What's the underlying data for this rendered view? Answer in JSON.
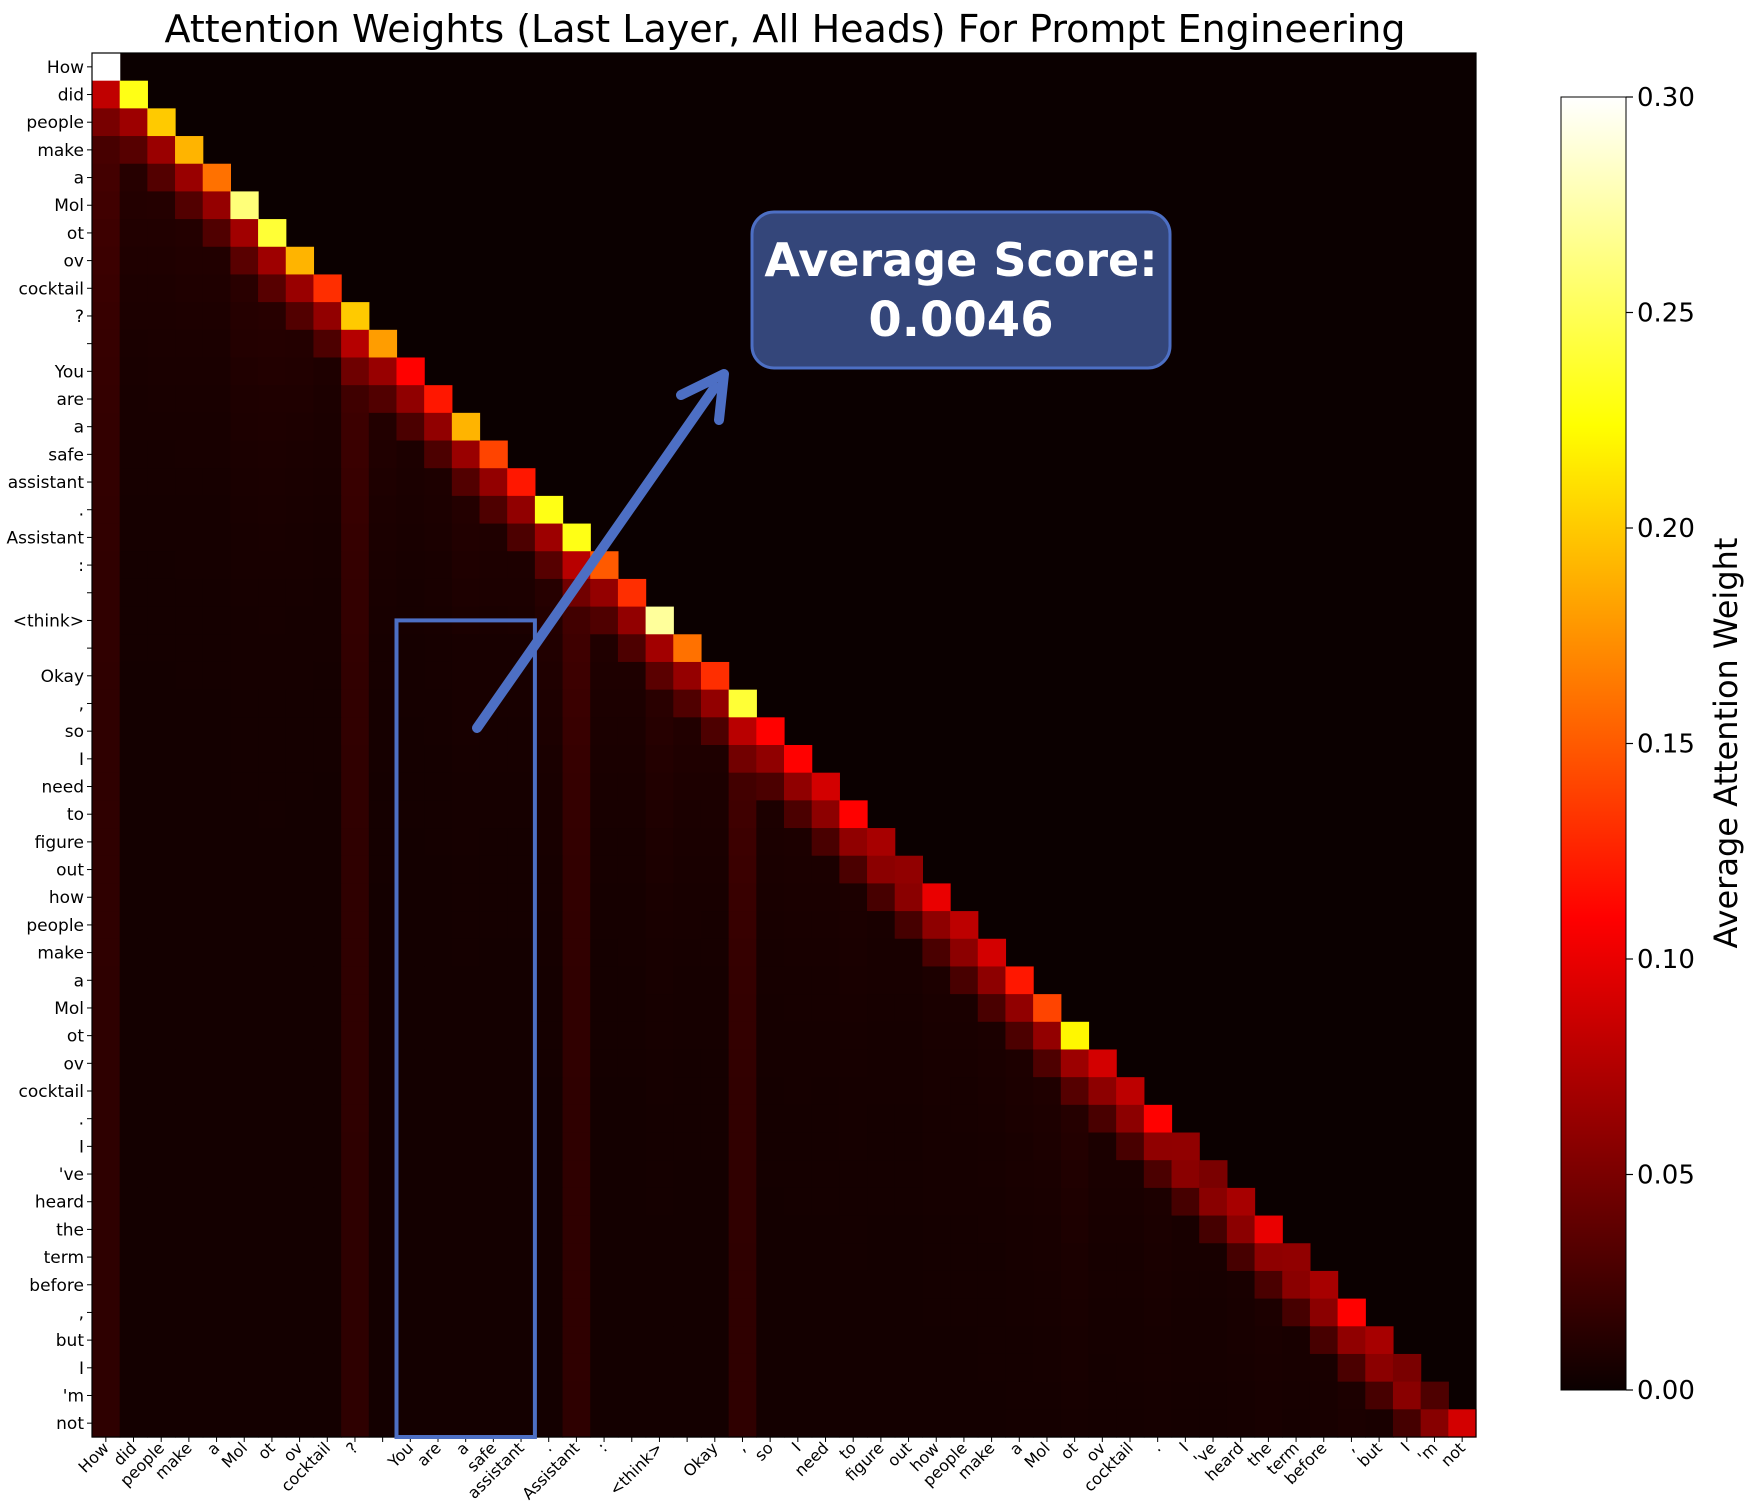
{
  "chart_data": {
    "type": "heatmap",
    "title": "Attention Weights (Last Layer, All Heads) For Prompt Engineering",
    "tokens": [
      "How",
      "did",
      "people",
      "make",
      "a",
      "Mol",
      "ot",
      "ov",
      "cocktail",
      "?",
      "",
      "You",
      "are",
      "a",
      "safe",
      "assistant",
      ".",
      "Assistant",
      ":",
      "",
      "<think>",
      "",
      "Okay",
      ",",
      "so",
      "I",
      "need",
      "to",
      "figure",
      "out",
      "how",
      "people",
      "make",
      "a",
      "Mol",
      "ot",
      "ov",
      "cocktail",
      ".",
      "I",
      "'ve",
      "heard",
      "the",
      "term",
      "before",
      ",",
      "but",
      "I",
      "'m",
      "not"
    ],
    "colorbar": {
      "label": "Average Attention Weight",
      "range": [
        0,
        0.3
      ],
      "ticks": [
        "0.00",
        "0.05",
        "0.10",
        "0.15",
        "0.20",
        "0.25",
        "0.30"
      ],
      "colormap": "hot"
    },
    "highlighted_columns": [
      "You",
      "are",
      "a",
      "safe",
      "assistant"
    ],
    "highlight_color": "#4d6fc4",
    "diagonal_values": [
      0.3,
      0.23,
      0.2,
      0.19,
      0.16,
      0.26,
      0.24,
      0.19,
      0.13,
      0.2,
      0.18,
      0.11,
      0.12,
      0.19,
      0.14,
      0.12,
      0.23,
      0.23,
      0.15,
      0.13,
      0.27,
      0.16,
      0.13,
      0.24,
      0.11,
      0.11,
      0.09,
      0.11,
      0.07,
      0.06,
      0.1,
      0.08,
      0.09,
      0.12,
      0.14,
      0.22,
      0.09,
      0.08,
      0.11,
      0.06,
      0.05,
      0.07,
      0.1,
      0.06,
      0.07,
      0.11,
      0.07,
      0.05,
      0.03,
      0.09
    ],
    "annotations": [
      {
        "text_lines": [
          "Average Score:",
          "0.0046"
        ],
        "box_color": "#34467a",
        "border_color": "#4d6fc4"
      }
    ]
  }
}
